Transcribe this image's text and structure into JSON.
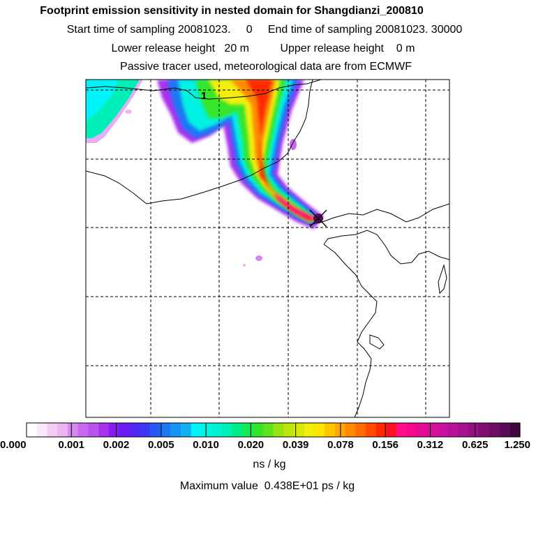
{
  "header": {
    "title": "Footprint emission sensitivity in nested domain for Shangdianzi_200810",
    "sampling": "Start time of sampling 20081023.     0     End time of sampling 20081023. 30000",
    "release": "Lower release height   20 m          Upper release height    0 m",
    "tracer": "Passive tracer used, meteorological data are from ECMWF"
  },
  "map": {
    "contour_label": "1",
    "receptor_marker": "x-marker-icon"
  },
  "colorbar": {
    "tick_labels": [
      "0.000",
      "0.001",
      "0.002",
      "0.005",
      "0.010",
      "0.020",
      "0.039",
      "0.078",
      "0.156",
      "0.312",
      "0.625",
      "1.250"
    ],
    "colors": [
      "#ffffff",
      "#fbe7fb",
      "#f4cdf6",
      "#eeb4f3",
      "#d489f0",
      "#c86aef",
      "#b853f0",
      "#a733ef",
      "#8b1cf0",
      "#6a1af2",
      "#5027f4",
      "#3c39f6",
      "#2659f3",
      "#1d78f5",
      "#1495f5",
      "#10b0f5",
      "#00f3f6",
      "#00f2e3",
      "#00f1cf",
      "#00efb9",
      "#00ec86",
      "#14ea55",
      "#34e629",
      "#5ee21a",
      "#96e413",
      "#bbe60f",
      "#dae90c",
      "#f3ee09",
      "#ffe600",
      "#ffc600",
      "#ffa700",
      "#ff8900",
      "#ff6b00",
      "#ff4a00",
      "#ff2a00",
      "#ff0f24",
      "#ff0d8c",
      "#f3088f",
      "#e40b95",
      "#d60f9d",
      "#c811a2",
      "#b71299",
      "#a6128e",
      "#931180",
      "#800f73",
      "#6d0d66",
      "#590b59",
      "#400740"
    ],
    "unit": "ns / kg",
    "max_value": "Maximum value  0.438E+01 ps / kg"
  }
}
